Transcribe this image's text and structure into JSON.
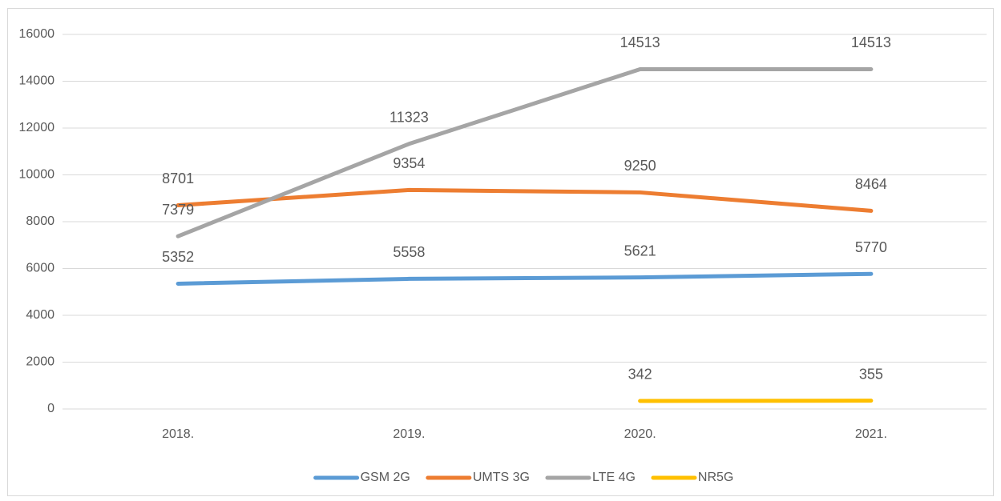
{
  "chart_data": {
    "type": "line",
    "categories": [
      "2018.",
      "2019.",
      "2020.",
      "2021."
    ],
    "series": [
      {
        "name": "GSM 2G",
        "color": "#5b9bd5",
        "values": [
          5352,
          5558,
          5621,
          5770
        ]
      },
      {
        "name": "UMTS 3G",
        "color": "#ed7d31",
        "values": [
          8701,
          9354,
          9250,
          8464
        ]
      },
      {
        "name": "LTE 4G",
        "color": "#a5a5a5",
        "values": [
          7379,
          11323,
          14513,
          14513
        ]
      },
      {
        "name": "NR5G",
        "color": "#ffc000",
        "values": [
          null,
          null,
          342,
          355
        ]
      }
    ],
    "ylim": [
      0,
      16000
    ],
    "yticks": [
      0,
      2000,
      4000,
      6000,
      8000,
      10000,
      12000,
      14000,
      16000
    ],
    "grid": true,
    "legend": "bottom"
  }
}
